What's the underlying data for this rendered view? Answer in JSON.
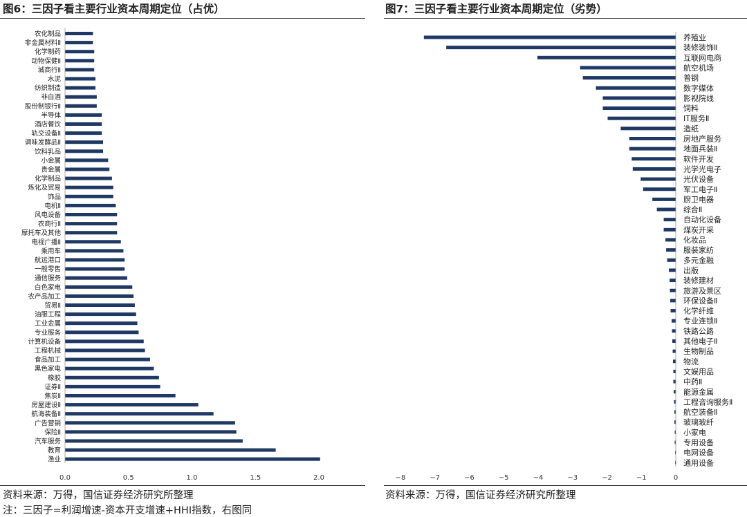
{
  "fig6": {
    "title": "图6：三因子看主要行业资本周期定位（占优）",
    "source": "资料来源：万得，国信证券经济研究所整理",
    "note": "注：三因子=利润增速-资本开支增速+HHI指数，右图同"
  },
  "fig7": {
    "title": "图7：三因子看主要行业资本周期定位（劣势）",
    "source": "资料来源：万得，国信证券经济研究所整理"
  },
  "colors": {
    "bar": "#1f3864",
    "text": "#222222",
    "axis": "#999999"
  },
  "chart_data": [
    {
      "type": "bar",
      "orientation": "horizontal",
      "title": "图6：三因子看主要行业资本周期定位（占优）",
      "xlim": [
        0,
        2.0
      ],
      "xticks": [
        "0.0",
        "0.5",
        "1.0",
        "1.5",
        "2.0"
      ],
      "categories": [
        "农化制品",
        "非金属材料Ⅱ",
        "化学制药",
        "动物保健Ⅱ",
        "城商行Ⅱ",
        "水泥",
        "纺织制造",
        "非白酒",
        "股份制银行Ⅱ",
        "半导体",
        "酒店餐饮",
        "轨交设备Ⅱ",
        "调味发酵品Ⅱ",
        "饮料乳品",
        "小金属",
        "贵金属",
        "化学制品",
        "炼化及贸易",
        "饰品",
        "电机Ⅱ",
        "风电设备",
        "农商行Ⅱ",
        "摩托车及其他",
        "电视广播Ⅱ",
        "乘用车",
        "航运港口",
        "一般零售",
        "通信服务",
        "白色家电",
        "农产品加工",
        "贸易Ⅱ",
        "油服工程",
        "工业金属",
        "专业服务",
        "计算机设备",
        "工程机械",
        "食品加工",
        "黑色家电",
        "橡胶",
        "证券Ⅱ",
        "焦炭Ⅱ",
        "房屋建设Ⅱ",
        "航海装备Ⅱ",
        "广告营销",
        "保险Ⅱ",
        "汽车服务",
        "教育",
        "渔业"
      ],
      "values": [
        0.22,
        0.22,
        0.23,
        0.23,
        0.23,
        0.24,
        0.24,
        0.25,
        0.25,
        0.29,
        0.29,
        0.29,
        0.3,
        0.3,
        0.34,
        0.35,
        0.37,
        0.38,
        0.38,
        0.4,
        0.41,
        0.41,
        0.41,
        0.44,
        0.46,
        0.47,
        0.47,
        0.49,
        0.53,
        0.54,
        0.55,
        0.56,
        0.57,
        0.58,
        0.62,
        0.63,
        0.67,
        0.7,
        0.74,
        0.75,
        0.87,
        1.05,
        1.17,
        1.34,
        1.35,
        1.4,
        1.66,
        2.01
      ]
    },
    {
      "type": "bar",
      "orientation": "horizontal",
      "title": "图7：三因子看主要行业资本周期定位（劣势）",
      "xlim": [
        -8,
        0
      ],
      "xticks": [
        "−8",
        "−7",
        "−6",
        "−5",
        "−4",
        "−3",
        "−2",
        "−1",
        "0"
      ],
      "categories": [
        "养殖业",
        "装修装饰Ⅱ",
        "互联网电商",
        "航空机场",
        "普钢",
        "数字媒体",
        "影视院线",
        "饲料",
        "IT服务Ⅱ",
        "造纸",
        "房地产服务",
        "地面兵装Ⅱ",
        "软件开发",
        "光学光电子",
        "光伏设备",
        "军工电子Ⅱ",
        "厨卫电器",
        "综合Ⅱ",
        "自动化设备",
        "煤炭开采",
        "化妆品",
        "服装家纺",
        "多元金融",
        "出版",
        "装修建材",
        "旅游及景区",
        "环保设备Ⅱ",
        "化学纤维",
        "专业连锁Ⅱ",
        "铁路公路",
        "其他电子Ⅱ",
        "生物制品",
        "物流",
        "文娱用品",
        "中药Ⅱ",
        "能源金属",
        "工程咨询服务Ⅱ",
        "航空装备Ⅱ",
        "玻璃玻纤",
        "小家电",
        "专用设备",
        "电网设备",
        "通用设备"
      ],
      "values": [
        -7.32,
        -6.67,
        -4.02,
        -2.78,
        -2.7,
        -2.32,
        -2.12,
        -2.12,
        -1.98,
        -1.6,
        -1.35,
        -1.35,
        -1.28,
        -1.25,
        -1.02,
        -0.95,
        -0.68,
        -0.55,
        -0.35,
        -0.35,
        -0.3,
        -0.28,
        -0.25,
        -0.2,
        -0.18,
        -0.17,
        -0.16,
        -0.15,
        -0.12,
        -0.11,
        -0.1,
        -0.09,
        -0.08,
        -0.07,
        -0.07,
        -0.06,
        -0.05,
        -0.04,
        -0.04,
        -0.03,
        -0.03,
        -0.02,
        -0.02
      ]
    }
  ]
}
